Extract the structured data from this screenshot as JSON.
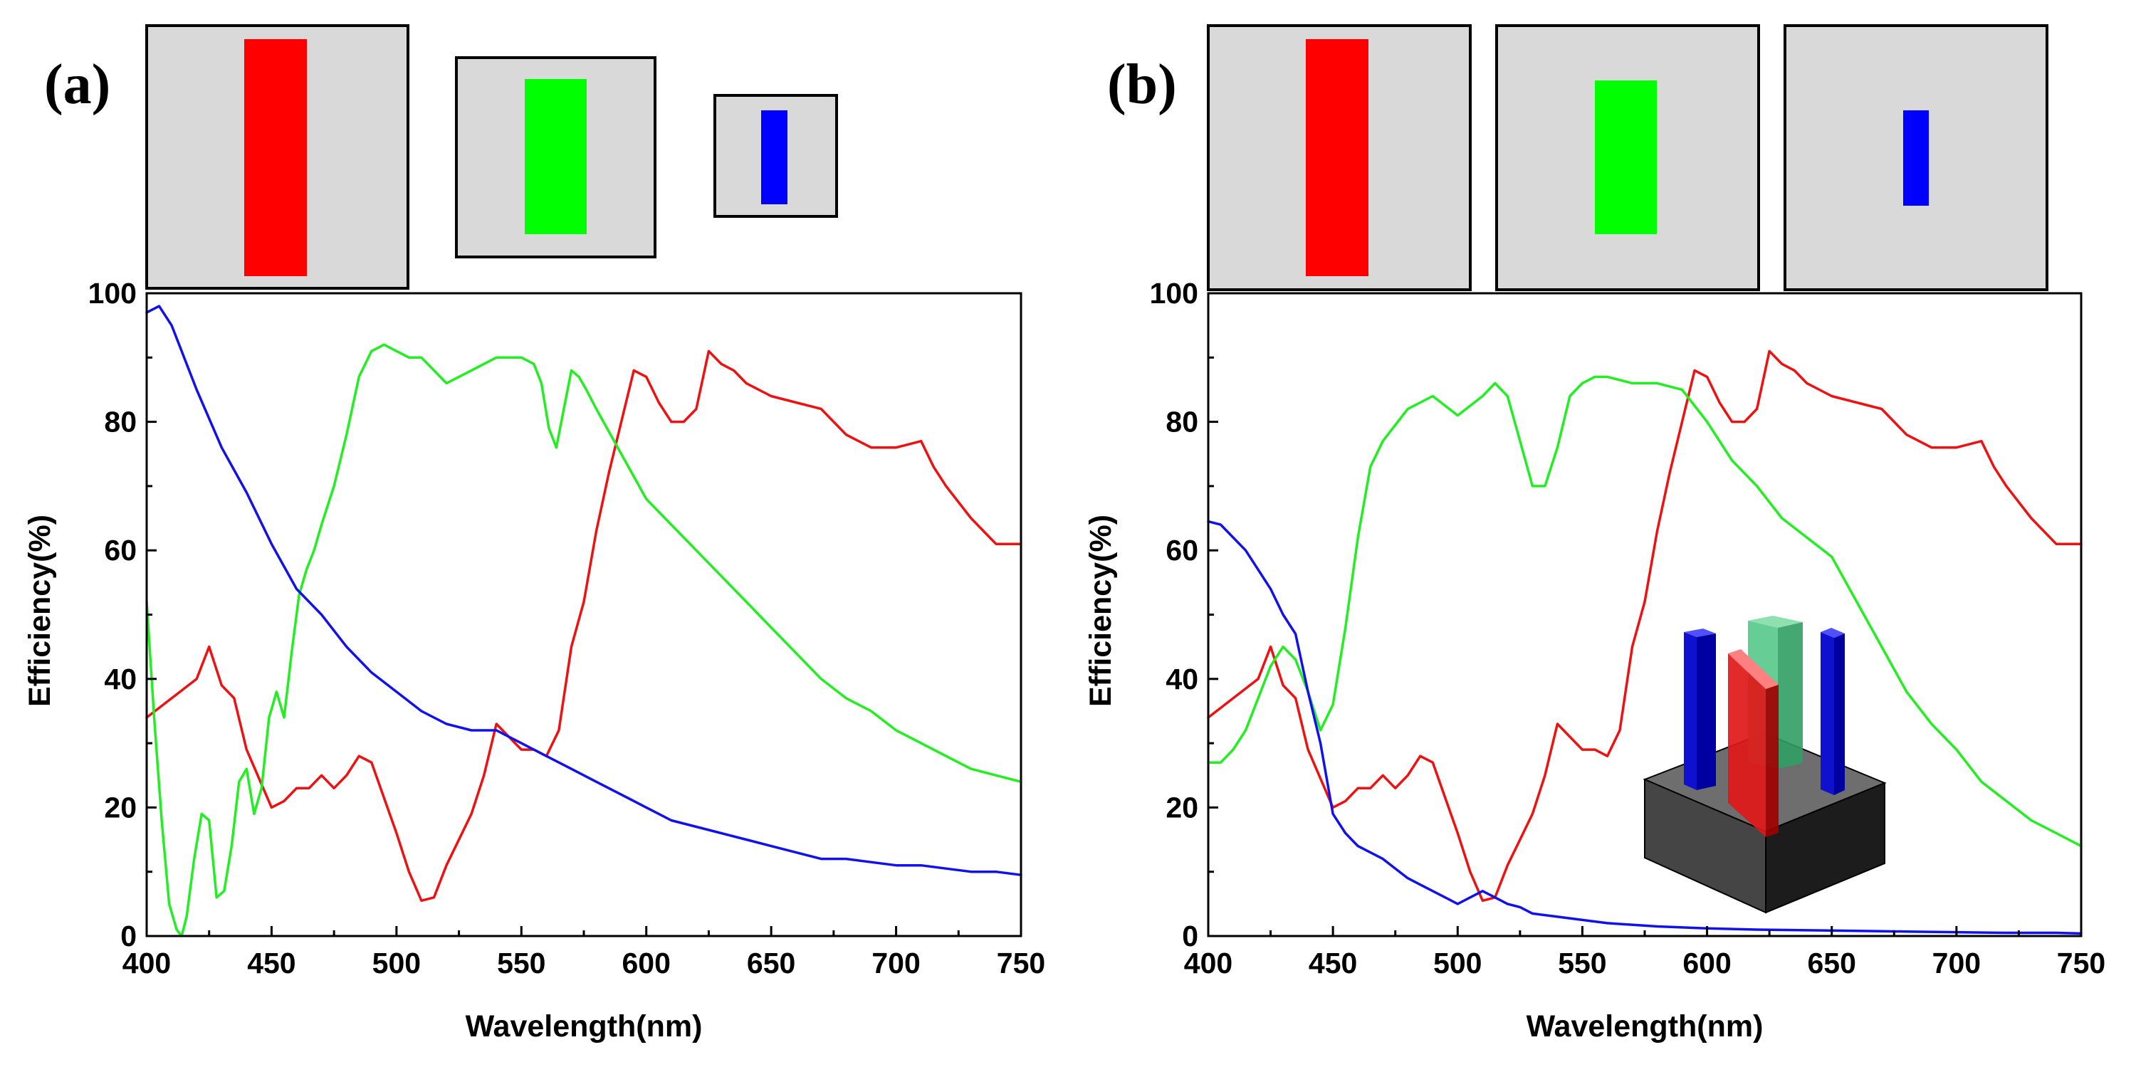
{
  "chart_data": [
    {
      "type": "line",
      "panel_label": "(a)",
      "xlabel": "Wavelength(nm)",
      "ylabel": "Efficiency(%)",
      "xlim": [
        400,
        750
      ],
      "ylim": [
        0,
        100
      ],
      "xticks": [
        400,
        450,
        500,
        550,
        600,
        650,
        700,
        750
      ],
      "yticks": [
        0,
        20,
        40,
        60,
        80,
        100
      ],
      "unit_cells": [
        {
          "name": "red-pillar-cell",
          "color": "#ff0000",
          "size": "large"
        },
        {
          "name": "green-pillar-cell",
          "color": "#00ff00",
          "size": "medium"
        },
        {
          "name": "blue-pillar-cell",
          "color": "#0000ff",
          "size": "small"
        }
      ],
      "series": [
        {
          "name": "red",
          "color": "#ee1111",
          "x": [
            400,
            410,
            420,
            425,
            430,
            435,
            440,
            450,
            455,
            460,
            465,
            470,
            475,
            480,
            485,
            490,
            500,
            505,
            510,
            515,
            520,
            525,
            530,
            535,
            540,
            545,
            550,
            555,
            560,
            565,
            570,
            575,
            580,
            585,
            590,
            595,
            600,
            605,
            610,
            615,
            620,
            625,
            630,
            635,
            640,
            650,
            660,
            670,
            680,
            685,
            690,
            700,
            710,
            715,
            720,
            730,
            740,
            750
          ],
          "y": [
            34,
            37,
            40,
            45,
            39,
            37,
            29,
            20,
            21,
            23,
            23,
            25,
            23,
            25,
            28,
            27,
            16,
            10,
            5.5,
            6,
            11,
            15,
            19,
            25,
            33,
            31,
            29,
            29,
            28,
            32,
            45,
            52,
            63,
            72,
            80,
            88,
            87,
            83,
            80,
            80,
            82,
            91,
            89,
            88,
            86,
            84,
            83,
            82,
            78,
            77,
            76,
            76,
            77,
            73,
            70,
            65,
            61,
            61
          ]
        },
        {
          "name": "green",
          "color": "#22ee22",
          "x": [
            400,
            403,
            406,
            409,
            412,
            414,
            416,
            419,
            422,
            425,
            428,
            431,
            434,
            437,
            440,
            443,
            446,
            449,
            452,
            455,
            458,
            461,
            464,
            467,
            470,
            475,
            480,
            485,
            490,
            495,
            500,
            505,
            510,
            515,
            520,
            525,
            530,
            535,
            540,
            545,
            550,
            555,
            558,
            561,
            564,
            567,
            570,
            573,
            576,
            580,
            590,
            600,
            610,
            620,
            630,
            640,
            650,
            660,
            670,
            680,
            690,
            700,
            710,
            720,
            730,
            740,
            750
          ],
          "y": [
            52,
            34,
            18,
            5,
            1,
            0,
            3,
            12,
            19,
            18,
            6,
            7,
            14,
            24,
            26,
            19,
            23,
            34,
            38,
            34,
            44,
            53,
            57,
            60,
            64,
            70,
            78,
            87,
            91,
            92,
            91,
            90,
            90,
            88,
            86,
            87,
            88,
            89,
            90,
            90,
            90,
            89,
            86,
            79,
            76,
            82,
            88,
            87,
            85,
            82,
            75,
            68,
            64,
            60,
            56,
            52,
            48,
            44,
            40,
            37,
            35,
            32,
            30,
            28,
            26,
            25,
            24
          ]
        },
        {
          "name": "blue",
          "color": "#1111ee",
          "x": [
            400,
            405,
            410,
            420,
            430,
            440,
            450,
            460,
            470,
            480,
            490,
            500,
            510,
            520,
            530,
            535,
            540,
            545,
            550,
            560,
            570,
            580,
            590,
            600,
            610,
            620,
            630,
            640,
            650,
            660,
            670,
            680,
            690,
            700,
            710,
            720,
            730,
            740,
            750
          ],
          "y": [
            97,
            98,
            95,
            85,
            76,
            69,
            61,
            54,
            50,
            45,
            41,
            38,
            35,
            33,
            32,
            32,
            32,
            31,
            30,
            28,
            26,
            24,
            22,
            20,
            18,
            17,
            16,
            15,
            14,
            13,
            12,
            12,
            11.5,
            11,
            11,
            10.5,
            10,
            10,
            9.5
          ]
        }
      ]
    },
    {
      "type": "line",
      "panel_label": "(b)",
      "xlabel": "Wavelength(nm)",
      "ylabel": "Efficiency(%)",
      "xlim": [
        400,
        750
      ],
      "ylim": [
        0,
        100
      ],
      "xticks": [
        400,
        450,
        500,
        550,
        600,
        650,
        700,
        750
      ],
      "yticks": [
        0,
        20,
        40,
        60,
        80,
        100
      ],
      "unit_cells": [
        {
          "name": "red-pillar-cell",
          "color": "#ff0000",
          "size": "large"
        },
        {
          "name": "green-pillar-cell",
          "color": "#00ff00",
          "size": "medium"
        },
        {
          "name": "blue-pillar-cell",
          "color": "#0000ff",
          "size": "small"
        }
      ],
      "inset": "3d-pillar-unit-cell",
      "series": [
        {
          "name": "red",
          "color": "#ee1111",
          "x": [
            400,
            410,
            420,
            425,
            430,
            435,
            440,
            450,
            455,
            460,
            465,
            470,
            475,
            480,
            485,
            490,
            500,
            505,
            510,
            515,
            520,
            525,
            530,
            535,
            540,
            545,
            550,
            555,
            560,
            565,
            570,
            575,
            580,
            585,
            590,
            595,
            600,
            605,
            610,
            615,
            620,
            625,
            630,
            635,
            640,
            650,
            660,
            670,
            680,
            685,
            690,
            700,
            710,
            715,
            720,
            730,
            740,
            750
          ],
          "y": [
            34,
            37,
            40,
            45,
            39,
            37,
            29,
            20,
            21,
            23,
            23,
            25,
            23,
            25,
            28,
            27,
            16,
            10,
            5.5,
            6,
            11,
            15,
            19,
            25,
            33,
            31,
            29,
            29,
            28,
            32,
            45,
            52,
            63,
            72,
            80,
            88,
            87,
            83,
            80,
            80,
            82,
            91,
            89,
            88,
            86,
            84,
            83,
            82,
            78,
            77,
            76,
            76,
            77,
            73,
            70,
            65,
            61,
            61
          ]
        },
        {
          "name": "green",
          "color": "#22ee22",
          "x": [
            400,
            405,
            410,
            415,
            420,
            425,
            430,
            435,
            440,
            445,
            450,
            455,
            460,
            465,
            470,
            480,
            490,
            500,
            510,
            515,
            520,
            525,
            530,
            535,
            540,
            545,
            550,
            555,
            560,
            570,
            580,
            590,
            600,
            610,
            620,
            630,
            640,
            650,
            660,
            670,
            680,
            690,
            700,
            710,
            720,
            730,
            740,
            750
          ],
          "y": [
            27,
            27,
            29,
            32,
            37,
            42,
            45,
            43,
            38,
            32,
            36,
            48,
            62,
            73,
            77,
            82,
            84,
            81,
            84,
            86,
            84,
            77,
            70,
            70,
            76,
            84,
            86,
            87,
            87,
            86,
            86,
            85,
            80,
            74,
            70,
            65,
            62,
            59,
            52,
            45,
            38,
            33,
            29,
            24,
            21,
            18,
            16,
            14
          ]
        },
        {
          "name": "blue",
          "color": "#1111ee",
          "x": [
            400,
            405,
            410,
            415,
            420,
            425,
            430,
            435,
            440,
            445,
            450,
            455,
            460,
            465,
            470,
            475,
            480,
            485,
            490,
            495,
            500,
            505,
            510,
            515,
            520,
            525,
            530,
            540,
            550,
            560,
            580,
            600,
            620,
            640,
            660,
            680,
            700,
            720,
            740,
            750
          ],
          "y": [
            64.5,
            64,
            62,
            60,
            57,
            54,
            50,
            47,
            38,
            30,
            19,
            16,
            14,
            13,
            12,
            10.5,
            9,
            8,
            7,
            6,
            5,
            6,
            7,
            6,
            5,
            4.5,
            3.5,
            3,
            2.5,
            2,
            1.5,
            1.2,
            1,
            0.9,
            0.8,
            0.7,
            0.6,
            0.5,
            0.5,
            0.4
          ]
        }
      ]
    }
  ]
}
